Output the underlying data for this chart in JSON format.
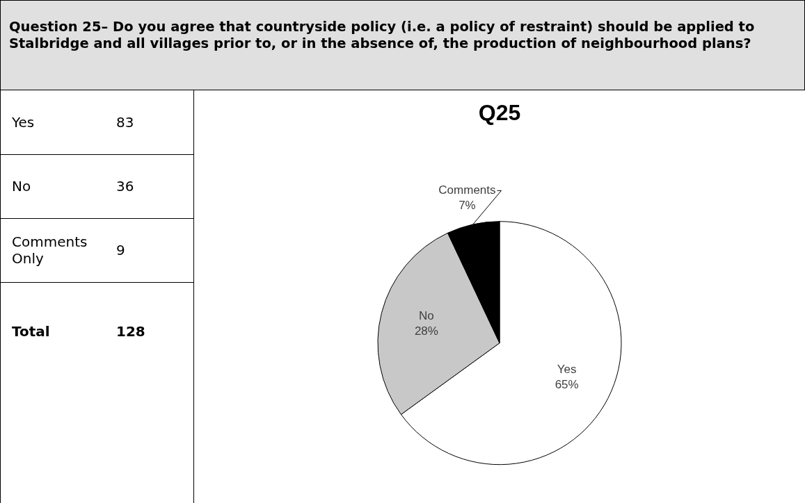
{
  "chart_data": [
    {
      "type": "other",
      "title": "Question 25– Do you agree that countryside policy (i.e. a policy of restraint) should be applied to Stalbridge and all villages prior to, or in the absence of, the production of neighbourhood plans?",
      "categories": [
        "Yes",
        "No",
        "Comments Only",
        "Total"
      ],
      "values": [
        83,
        36,
        9,
        128
      ],
      "data_labels": true
    },
    {
      "type": "pie",
      "title": "Q25",
      "categories": [
        "Yes",
        "No",
        "Comments"
      ],
      "values": [
        65,
        28,
        7
      ],
      "colors": [
        "#ffffff",
        "#c8c8c8",
        "#000000"
      ],
      "value_labels": [
        "65%",
        "28%",
        "7%"
      ]
    }
  ]
}
